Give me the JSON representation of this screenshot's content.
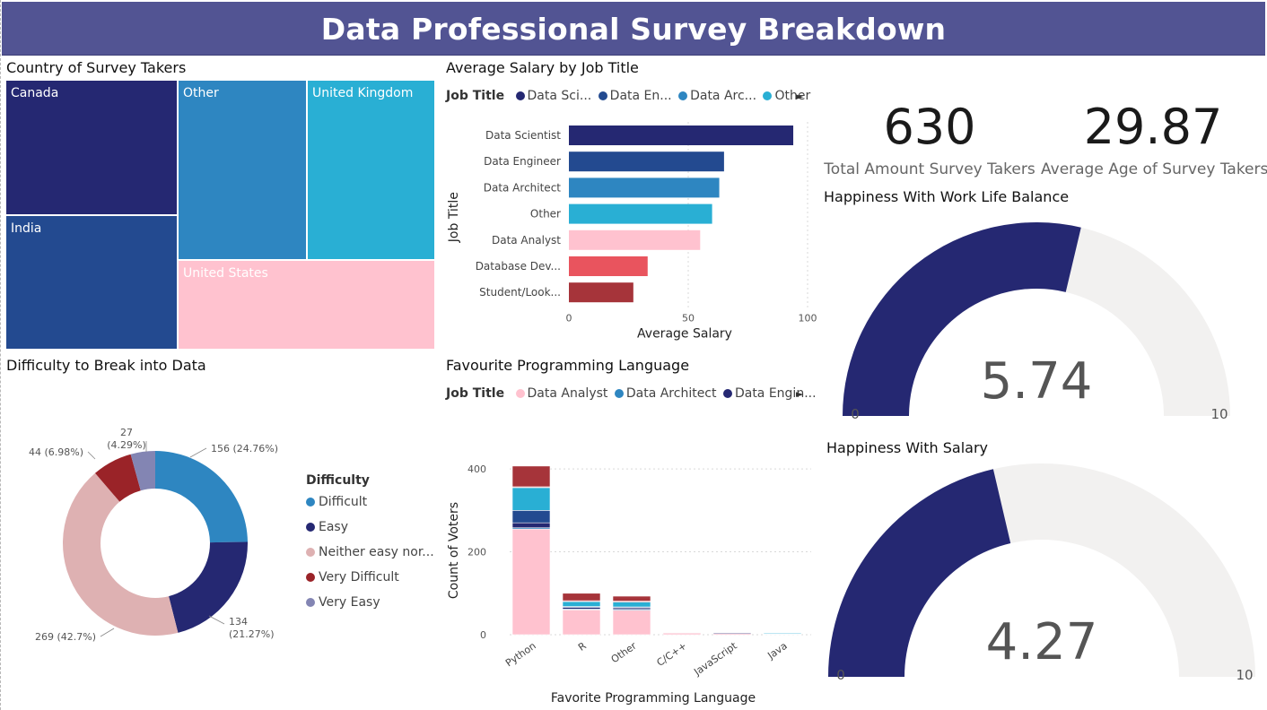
{
  "header": {
    "title": "Data Professional Survey Breakdown"
  },
  "colors": {
    "navy": "#252872",
    "blue": "#234a90",
    "mid_blue": "#2e86c1",
    "cyan": "#29afd4",
    "pink": "#ffc2cf",
    "red": "#e9545e",
    "dark_red": "#a6343a",
    "gauge_bg": "#f2f1f0",
    "donut_difficult": "#2e86c1",
    "donut_easy": "#252872",
    "donut_neither": "#deb1b2",
    "donut_very_difficult": "#9a2328",
    "donut_very_easy": "#8385b3"
  },
  "treemap": {
    "title": "Country of Survey Takers",
    "tiles": [
      {
        "label": "Canada",
        "color": "#252872"
      },
      {
        "label": "India",
        "color": "#234a90"
      },
      {
        "label": "Other",
        "color": "#2e86c1"
      },
      {
        "label": "United Kingdom",
        "color": "#29afd4"
      },
      {
        "label": "United States",
        "color": "#ffc2cf"
      }
    ]
  },
  "salary_chart": {
    "title": "Average Salary by Job Title",
    "legend_title": "Job Title",
    "legend_items": [
      {
        "label": "Data Sci...",
        "color": "#252872"
      },
      {
        "label": "Data En...",
        "color": "#234a90"
      },
      {
        "label": "Data Arc...",
        "color": "#2e86c1"
      },
      {
        "label": "Other",
        "color": "#29afd4"
      }
    ],
    "legend_arrow": "►"
  },
  "languages_chart": {
    "title": "Favourite Programming Language",
    "legend_title": "Job Title",
    "legend_items": [
      {
        "label": "Data Analyst",
        "color": "#ffc2cf"
      },
      {
        "label": "Data Architect",
        "color": "#2e86c1"
      },
      {
        "label": "Data Engin...",
        "color": "#252872"
      }
    ],
    "legend_arrow": "►"
  },
  "difficulty_chart": {
    "title": "Difficulty to Break into Data",
    "legend_title": "Difficulty",
    "legend_items": [
      {
        "label": "Difficult",
        "color": "#2e86c1"
      },
      {
        "label": "Easy",
        "color": "#252872"
      },
      {
        "label": "Neither easy nor...",
        "color": "#deb1b2"
      },
      {
        "label": "Very Difficult",
        "color": "#9a2328"
      },
      {
        "label": "Very Easy",
        "color": "#8385b3"
      }
    ]
  },
  "kpis": [
    {
      "value": "630",
      "label": "Total Amount Survey Takers"
    },
    {
      "value": "29.87",
      "label": "Average Age of Survey Takers"
    }
  ],
  "gauges": [
    {
      "title": "Happiness With Work Life Balance",
      "value_label": "5.74",
      "min_label": "0",
      "max_label": "10"
    },
    {
      "title": "Happiness With Salary",
      "value_label": "4.27",
      "min_label": "0",
      "max_label": "10"
    }
  ],
  "chart_data": [
    {
      "type": "treemap",
      "title": "Country of Survey Takers",
      "categories": [
        "United States",
        "Other",
        "India",
        "United Kingdom",
        "Canada"
      ]
    },
    {
      "type": "bar",
      "orientation": "horizontal",
      "title": "Average Salary by Job Title",
      "xlabel": "Average Salary",
      "ylabel": "Job Title",
      "categories": [
        "Data Scientist",
        "Data Engineer",
        "Data Architect",
        "Other",
        "Data Analyst",
        "Database Dev...",
        "Student/Look..."
      ],
      "values": [
        94,
        65,
        63,
        60,
        55,
        33,
        27
      ],
      "colors": [
        "#252872",
        "#234a90",
        "#2e86c1",
        "#29afd4",
        "#ffc2cf",
        "#e9545e",
        "#a6343a"
      ],
      "xlim": [
        0,
        100
      ],
      "xticks": [
        0,
        50,
        100
      ],
      "xtick_labels": [
        "0",
        "50",
        "100"
      ],
      "grid": true
    },
    {
      "type": "bar",
      "stacked": true,
      "title": "Favourite Programming Language",
      "xlabel": "Favorite Programming Language",
      "ylabel": "Count of Voters",
      "categories": [
        "Python",
        "R",
        "Other",
        "C/C++",
        "JavaScript",
        "Java"
      ],
      "series": [
        {
          "name": "Data Analyst",
          "color": "#ffc2cf",
          "values": [
            255,
            60,
            59,
            4,
            3,
            1
          ]
        },
        {
          "name": "Data Architect",
          "color": "#2e86c1",
          "values": [
            3,
            2,
            2,
            0,
            0,
            0
          ]
        },
        {
          "name": "Data Engineer",
          "color": "#252872",
          "values": [
            12,
            4,
            4,
            1,
            2,
            1
          ]
        },
        {
          "color": "#234a90",
          "values": [
            30,
            2,
            2,
            1,
            1,
            0
          ]
        },
        {
          "color": "#29afd4",
          "values": [
            55,
            12,
            12,
            1,
            1,
            2
          ]
        },
        {
          "color": "#e9545e",
          "values": [
            2,
            2,
            2,
            0,
            0,
            0
          ]
        },
        {
          "color": "#a6343a",
          "values": [
            50,
            18,
            12,
            1,
            0,
            0
          ]
        }
      ],
      "ylim": [
        0,
        450
      ],
      "yticks": [
        0,
        200,
        400
      ],
      "grid": true
    },
    {
      "type": "pie",
      "donut": true,
      "title": "Difficulty to Break into Data",
      "legend_title": "Difficulty",
      "labels": [
        "Difficult",
        "Easy",
        "Neither easy nor...",
        "Very Difficult",
        "Very Easy"
      ],
      "values": [
        156,
        134,
        269,
        44,
        27
      ],
      "data_labels": [
        "156 (24.76%)",
        "134 (21.27%)",
        "269 (42.7%)",
        "44 (6.98%)",
        "27 (4.29%)"
      ],
      "colors": [
        "#2e86c1",
        "#252872",
        "#deb1b2",
        "#9a2328",
        "#8385b3"
      ]
    },
    {
      "type": "gauge",
      "title": "Happiness With Work Life Balance",
      "value": 5.74,
      "min": 0,
      "max": 10
    },
    {
      "type": "gauge",
      "title": "Happiness With Salary",
      "value": 4.27,
      "min": 0,
      "max": 10
    }
  ]
}
